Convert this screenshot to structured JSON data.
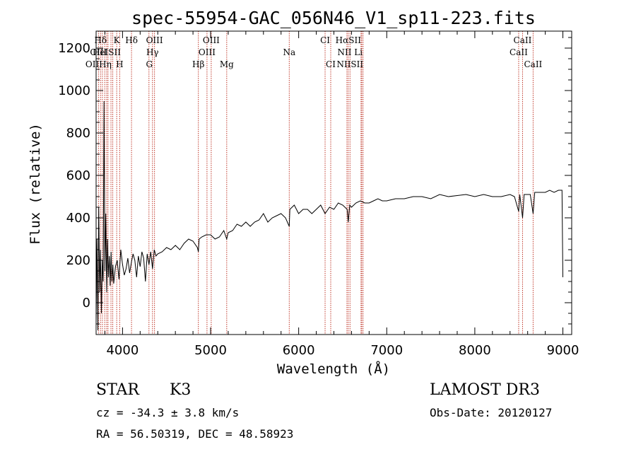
{
  "chart_data": {
    "type": "line",
    "title": "spec-55954-GAC_056N46_V1_sp11-223.fits",
    "xlabel": "Wavelength (Å)",
    "ylabel": "Flux (relative)",
    "xlim": [
      3700,
      9100
    ],
    "ylim": [
      -150,
      1280
    ],
    "xticks": [
      4000,
      5000,
      6000,
      7000,
      8000,
      9000
    ],
    "yticks": [
      0,
      200,
      400,
      600,
      800,
      1000,
      1200
    ],
    "grid": false,
    "series": [
      {
        "name": "spectrum",
        "x": [
          3700,
          3710,
          3720,
          3730,
          3740,
          3750,
          3760,
          3770,
          3780,
          3790,
          3800,
          3810,
          3820,
          3830,
          3840,
          3850,
          3860,
          3870,
          3880,
          3890,
          3900,
          3920,
          3940,
          3960,
          3980,
          4000,
          4020,
          4040,
          4060,
          4080,
          4100,
          4120,
          4140,
          4160,
          4180,
          4200,
          4220,
          4240,
          4260,
          4280,
          4300,
          4320,
          4340,
          4360,
          4380,
          4400,
          4450,
          4500,
          4550,
          4600,
          4650,
          4700,
          4750,
          4800,
          4850,
          4861,
          4870,
          4900,
          4950,
          5000,
          5050,
          5100,
          5150,
          5183,
          5200,
          5250,
          5300,
          5350,
          5400,
          5450,
          5500,
          5550,
          5600,
          5650,
          5700,
          5750,
          5800,
          5850,
          5893,
          5900,
          5950,
          6000,
          6050,
          6100,
          6150,
          6200,
          6250,
          6300,
          6350,
          6400,
          6450,
          6500,
          6550,
          6563,
          6580,
          6600,
          6650,
          6700,
          6750,
          6800,
          6850,
          6900,
          6950,
          7000,
          7100,
          7200,
          7300,
          7400,
          7500,
          7600,
          7700,
          7800,
          7900,
          8000,
          8100,
          8200,
          8300,
          8400,
          8450,
          8498,
          8510,
          8542,
          8560,
          8600,
          8630,
          8662,
          8680,
          8700,
          8750,
          8800,
          8850,
          8900,
          8950,
          8990,
          9000
        ],
        "y": [
          -100,
          300,
          -130,
          450,
          50,
          250,
          -50,
          200,
          100,
          950,
          150,
          420,
          50,
          300,
          120,
          220,
          80,
          240,
          100,
          180,
          90,
          170,
          200,
          110,
          250,
          180,
          130,
          160,
          210,
          140,
          190,
          230,
          200,
          120,
          220,
          170,
          240,
          210,
          100,
          230,
          180,
          240,
          160,
          250,
          220,
          230,
          240,
          260,
          250,
          270,
          250,
          280,
          300,
          290,
          260,
          240,
          300,
          310,
          320,
          320,
          300,
          310,
          340,
          300,
          330,
          340,
          370,
          360,
          380,
          360,
          380,
          390,
          420,
          380,
          400,
          410,
          420,
          400,
          360,
          440,
          460,
          420,
          440,
          440,
          420,
          440,
          460,
          420,
          450,
          440,
          470,
          460,
          440,
          380,
          460,
          450,
          470,
          480,
          470,
          470,
          480,
          490,
          480,
          480,
          490,
          490,
          500,
          500,
          490,
          510,
          500,
          505,
          510,
          500,
          510,
          500,
          500,
          510,
          500,
          430,
          510,
          400,
          510,
          510,
          510,
          420,
          520,
          520,
          520,
          520,
          530,
          520,
          530,
          530,
          120
        ]
      }
    ],
    "lines": [
      {
        "label": "Hδ",
        "x": 3750,
        "row": 1
      },
      {
        "label": "K",
        "x": 3934,
        "row": 1
      },
      {
        "label": "Hδ",
        "x": 4102,
        "row": 1
      },
      {
        "label": "OIII",
        "x": 4363,
        "row": 1
      },
      {
        "label": "OIII",
        "x": 5007,
        "row": 1
      },
      {
        "label": "CI",
        "x": 6300,
        "row": 1
      },
      {
        "label": "HαSII",
        "x": 6563,
        "row": 1
      },
      {
        "label": "CaII",
        "x": 8542,
        "row": 1
      },
      {
        "label": "OIII",
        "x": 3727,
        "row": 2
      },
      {
        "label": "HeISII",
        "x": 3820,
        "row": 2
      },
      {
        "label": "Hγ",
        "x": 4340,
        "row": 2
      },
      {
        "label": "OIII",
        "x": 4959,
        "row": 2
      },
      {
        "label": "Na",
        "x": 5893,
        "row": 2
      },
      {
        "label": "NII Li",
        "x": 6583,
        "row": 2
      },
      {
        "label": "CaII",
        "x": 8498,
        "row": 2
      },
      {
        "label": "OIIHη",
        "x": 3727,
        "row": 3
      },
      {
        "label": "H",
        "x": 3968,
        "row": 3
      },
      {
        "label": "G",
        "x": 4304,
        "row": 3
      },
      {
        "label": "Hβ",
        "x": 4861,
        "row": 3
      },
      {
        "label": "Mg",
        "x": 5183,
        "row": 3
      },
      {
        "label": "CI",
        "x": 6364,
        "row": 3
      },
      {
        "label": "NIISII",
        "x": 6583,
        "row": 3
      },
      {
        "label": "CaII",
        "x": 8662,
        "row": 3
      }
    ],
    "line_markers": [
      3727,
      3750,
      3771,
      3798,
      3820,
      3835,
      3869,
      3889,
      3934,
      3968,
      4102,
      4300,
      4340,
      4363,
      4861,
      4959,
      5007,
      5183,
      5893,
      6300,
      6364,
      6548,
      6563,
      6583,
      6708,
      6716,
      6731,
      8498,
      8542,
      8662
    ]
  },
  "info": {
    "class": "STAR",
    "subclass": "K3",
    "survey": "LAMOST DR3",
    "cz": "cz = -34.3 ± 3.8 km/s",
    "obs_date": "Obs-Date: 20120127",
    "coords": "RA =  56.50319, DEC =  48.58923"
  }
}
